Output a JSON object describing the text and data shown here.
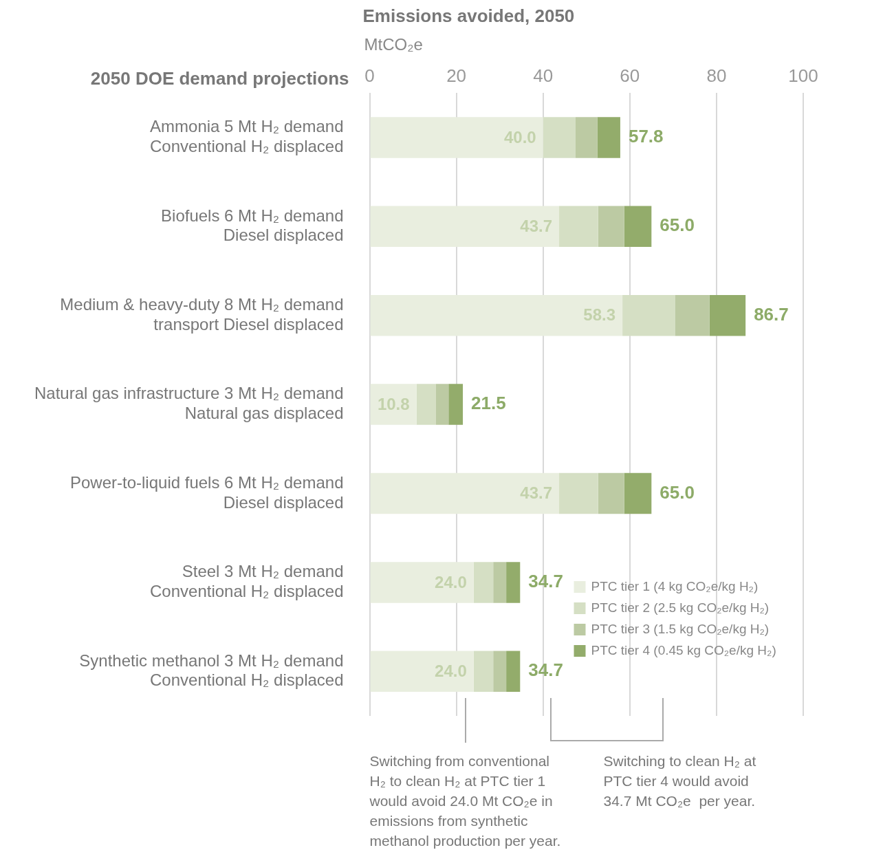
{
  "chart_data": {
    "type": "bar",
    "orientation": "horizontal",
    "stacked": true,
    "title": "Emissions avoided, 2050",
    "xlabel": "MtCO₂e",
    "ylabel": "2050 DOE demand projections",
    "categories": [
      "Ammonia 5 Mt H₂ demand\nConventional H₂ displaced",
      "Biofuels 6 Mt H₂ demand\nDiesel displaced",
      "Medium & heavy-duty 8 Mt H₂ demand\ntransport Diesel displaced",
      "Natural gas infrastructure 3 Mt H₂ demand\nNatural gas displaced",
      "Power-to-liquid fuels 6 Mt H₂ demand\nDiesel displaced",
      "Steel 3 Mt H₂ demand\nConventional H₂ displaced",
      "Synthetic methanol 3 Mt H₂ demand\nConventional H₂ displaced"
    ],
    "series": [
      {
        "name": "PTC tier 1 (4 kg CO₂e/kg H₂)",
        "color": "#e9eedf",
        "values": [
          40.0,
          43.7,
          58.3,
          10.8,
          43.7,
          24.0,
          24.0
        ],
        "value_labels": [
          "40.0",
          "43.7",
          "58.3",
          "10.8",
          "43.7",
          "24.0",
          "24.0"
        ]
      },
      {
        "name": "PTC tier 2 (2.5 kg CO₂e/kg H₂)",
        "color": "#d5dfc4",
        "values": [
          7.5,
          9.0,
          12.1,
          4.5,
          9.0,
          4.5,
          4.5
        ]
      },
      {
        "name": "PTC tier 3 (1.5 kg CO₂e/kg H₂)",
        "color": "#bccaa3",
        "values": [
          5.0,
          6.0,
          8.0,
          2.9,
          6.0,
          3.0,
          3.0
        ]
      },
      {
        "name": "PTC tier 4 (0.45 kg CO₂e/kg H₂)",
        "color": "#93ac6b",
        "values": [
          5.3,
          6.3,
          8.3,
          3.3,
          6.3,
          3.2,
          3.2
        ]
      }
    ],
    "totals": [
      "57.8",
      "65.0",
      "86.7",
      "21.5",
      "65.0",
      "34.7",
      "34.7"
    ],
    "xlim": [
      0,
      100
    ],
    "xticks": [
      0,
      20,
      40,
      60,
      80,
      100
    ],
    "grid": "x",
    "legend": "bottom right",
    "annotations": [
      "Switching from conventional\nH₂ to clean H₂ at PTC tier 1\nwould avoid 24.0 Mt CO₂e in\nemissions from synthetic\nmethanol production per year.",
      "Switching to clean H₂ at\nPTC tier 4 would avoid\n34.7 Mt CO₂e  per year."
    ]
  }
}
